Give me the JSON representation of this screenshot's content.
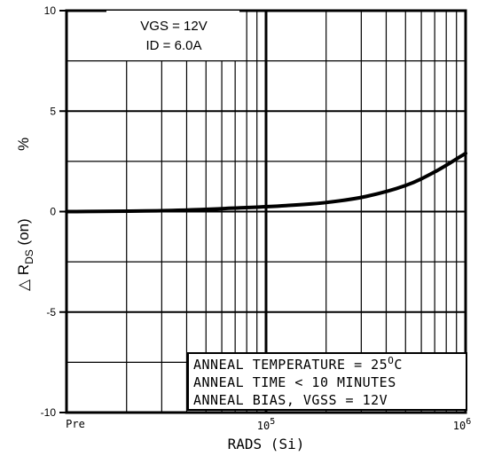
{
  "chart_data": {
    "type": "line",
    "x_scale": "log",
    "xlim_log10": [
      4,
      6
    ],
    "ylim": [
      -10,
      10
    ],
    "x_ticks": [
      {
        "log10": 4,
        "label": "Pre"
      },
      {
        "log10": 5,
        "label_base": "10",
        "label_exp": "5"
      },
      {
        "log10": 6,
        "label_base": "10",
        "label_exp": "6"
      }
    ],
    "y_ticks": [
      {
        "value": 10,
        "label": "10"
      },
      {
        "value": 5,
        "label": "5"
      },
      {
        "value": 0,
        "label": "0"
      },
      {
        "value": -5,
        "label": "-5"
      },
      {
        "value": -10,
        "label": "-10"
      }
    ],
    "xlabel": "RADS (Si)",
    "ylabel": {
      "prefix": "△ R",
      "sub": "DS",
      "suffix": " (on)",
      "unit": "%"
    },
    "grid": true,
    "conditions": [
      "VGS = 12V",
      "ID = 6.0A"
    ],
    "annotation": {
      "line1_prefix": "ANNEAL TEMPERATURE = 25",
      "line1_sup": "O",
      "line1_suffix": "C",
      "line2": "ANNEAL TIME < 10 MINUTES",
      "line3": "ANNEAL BIAS,  VGSS = 12V"
    },
    "series": [
      {
        "points": [
          {
            "x_log10": 4.0,
            "y": 0.0
          },
          {
            "x_log10": 4.5,
            "y": 0.05
          },
          {
            "x_log10": 4.9,
            "y": 0.2
          },
          {
            "x_log10": 5.1,
            "y": 0.3
          },
          {
            "x_log10": 5.3,
            "y": 0.45
          },
          {
            "x_log10": 5.5,
            "y": 0.75
          },
          {
            "x_log10": 5.7,
            "y": 1.3
          },
          {
            "x_log10": 5.85,
            "y": 2.0
          },
          {
            "x_log10": 6.0,
            "y": 2.9
          }
        ]
      }
    ]
  }
}
